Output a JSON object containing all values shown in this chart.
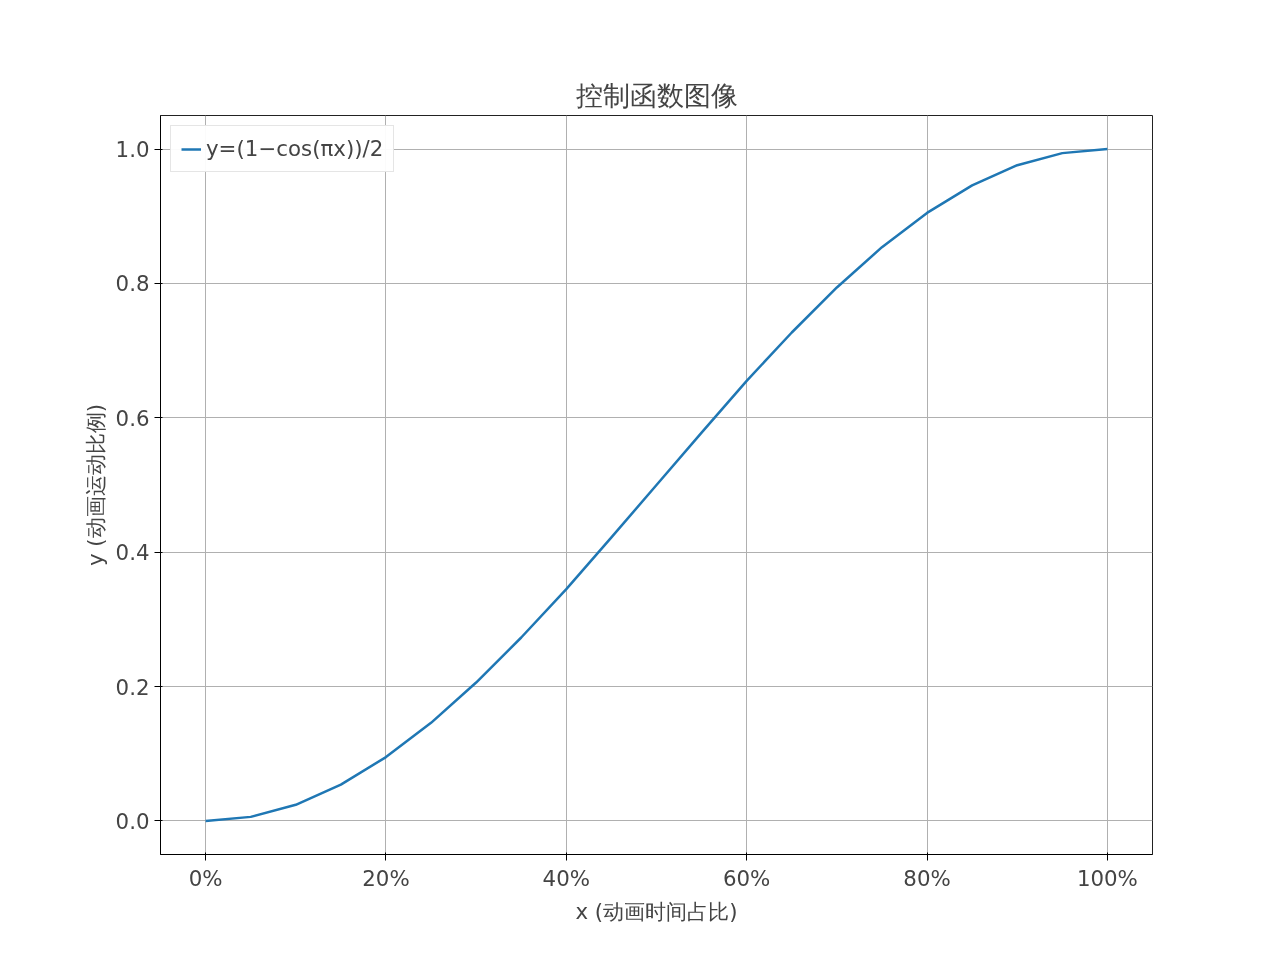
{
  "chart_data": {
    "type": "line",
    "title": "控制函数图像",
    "xlabel": "x (动画时间占比)",
    "ylabel": "y (动画运动比例)",
    "x": [
      0,
      5,
      10,
      15,
      20,
      25,
      30,
      35,
      40,
      45,
      50,
      55,
      60,
      65,
      70,
      75,
      80,
      85,
      90,
      95,
      100
    ],
    "series": [
      {
        "name": "y=(1−cos(πx))/2",
        "color": "#1f77b4",
        "values": [
          0,
          0.006,
          0.024,
          0.054,
          0.095,
          0.146,
          0.206,
          0.273,
          0.345,
          0.422,
          0.5,
          0.578,
          0.655,
          0.727,
          0.794,
          0.854,
          0.905,
          0.946,
          0.976,
          0.994,
          1
        ]
      }
    ],
    "xlim": [
      -5,
      105
    ],
    "ylim": [
      -0.05,
      1.05
    ],
    "xticks": [
      {
        "value": 0,
        "label": "0%"
      },
      {
        "value": 20,
        "label": "20%"
      },
      {
        "value": 40,
        "label": "40%"
      },
      {
        "value": 60,
        "label": "60%"
      },
      {
        "value": 80,
        "label": "80%"
      },
      {
        "value": 100,
        "label": "100%"
      }
    ],
    "yticks": [
      {
        "value": 0,
        "label": "0.0"
      },
      {
        "value": 0.2,
        "label": "0.2"
      },
      {
        "value": 0.4,
        "label": "0.4"
      },
      {
        "value": 0.6,
        "label": "0.6"
      },
      {
        "value": 0.8,
        "label": "0.8"
      },
      {
        "value": 1.0,
        "label": "1.0"
      }
    ],
    "grid": true,
    "legend": "top left"
  }
}
